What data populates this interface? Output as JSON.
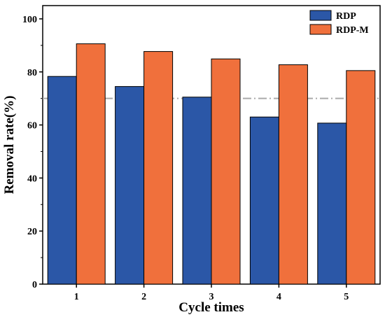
{
  "chart_data": {
    "type": "bar",
    "title": "",
    "xlabel": "Cycle times",
    "ylabel": "Removal rate(%)",
    "categories": [
      "1",
      "2",
      "3",
      "4",
      "5"
    ],
    "series": [
      {
        "name": "RDP",
        "values": [
          78.3,
          74.5,
          70.5,
          63.0,
          60.7
        ],
        "color": "#2b57a7"
      },
      {
        "name": "RDP-M",
        "values": [
          90.6,
          87.7,
          84.9,
          82.7,
          80.5
        ],
        "color": "#f0703c"
      }
    ],
    "ylim": [
      0,
      105
    ],
    "yticks": [
      0,
      20,
      40,
      60,
      80,
      100
    ],
    "reference_line": {
      "y": 70,
      "style": "dash-dot",
      "color": "#aaaaaa"
    },
    "legend_position": "top-right",
    "grid": false
  }
}
